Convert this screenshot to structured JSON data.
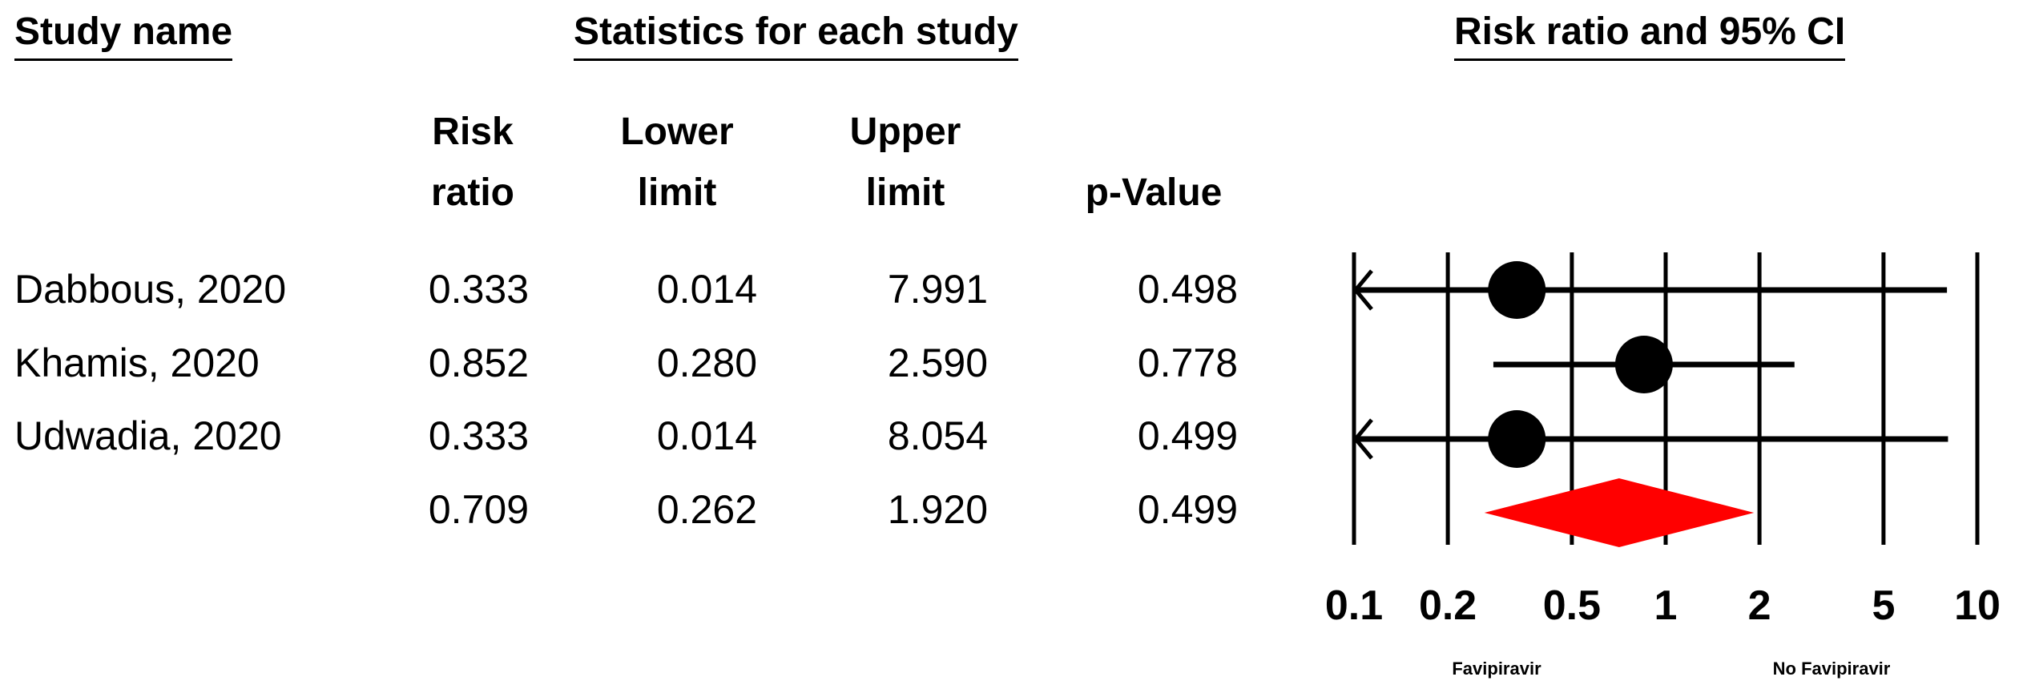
{
  "headers": {
    "study_name": "Study name",
    "statistics": "Statistics for each study",
    "plot": "Risk ratio and 95% CI"
  },
  "columns": {
    "risk_ratio": "Risk\nratio",
    "lower_limit": "Lower\nlimit",
    "upper_limit": "Upper\nlimit",
    "p_value": "p-Value"
  },
  "rows": [
    {
      "study": "Dabbous, 2020",
      "rr": "0.333",
      "lower": "0.014",
      "upper": "7.991",
      "p": "0.498"
    },
    {
      "study": "Khamis, 2020",
      "rr": "0.852",
      "lower": "0.280",
      "upper": "2.590",
      "p": "0.778"
    },
    {
      "study": "Udwadia, 2020",
      "rr": "0.333",
      "lower": "0.014",
      "upper": "8.054",
      "p": "0.499"
    }
  ],
  "pooled": {
    "rr": "0.709",
    "lower": "0.262",
    "upper": "1.920",
    "p": "0.499"
  },
  "chart_data": {
    "type": "forest",
    "scale": "log",
    "xlim": [
      0.1,
      10
    ],
    "xticks": [
      {
        "value": 0.1,
        "label": "0.1"
      },
      {
        "value": 0.2,
        "label": "0.2"
      },
      {
        "value": 0.5,
        "label": "0.5"
      },
      {
        "value": 1,
        "label": "1"
      },
      {
        "value": 2,
        "label": "2"
      },
      {
        "value": 5,
        "label": "5"
      },
      {
        "value": 10,
        "label": "10"
      }
    ],
    "studies": [
      {
        "rr": 0.333,
        "lower": 0.014,
        "upper": 7.991
      },
      {
        "rr": 0.852,
        "lower": 0.28,
        "upper": 2.59
      },
      {
        "rr": 0.333,
        "lower": 0.014,
        "upper": 8.054
      }
    ],
    "pooled": {
      "rr": 0.709,
      "lower": 0.262,
      "upper": 1.92
    },
    "favours_left": "Favipiravir",
    "favours_right": "No Favipiravir",
    "colors": {
      "marker": "#000000",
      "diamond": "#ff0000"
    }
  }
}
